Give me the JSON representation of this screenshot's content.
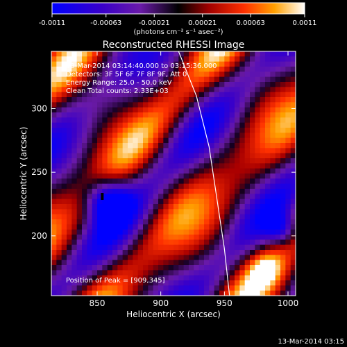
{
  "colorbar": {
    "tick_labels": [
      "-0.0011",
      "-0.00063",
      "-0.00021",
      "0.00021",
      "0.00063",
      "0.0011"
    ],
    "unit_label": "(photons cm⁻² s⁻¹ asec⁻²)",
    "range": [
      -0.0011,
      0.0011
    ]
  },
  "chart_data": {
    "type": "heatmap",
    "title": "Reconstructed RHESSI Image",
    "xlabel": "Heliocentric X (arcsec)",
    "ylabel": "Heliocentric Y (arcsec)",
    "xlim": [
      814,
      1006
    ],
    "ylim": [
      153,
      345
    ],
    "x_ticks": [
      850,
      900,
      950,
      1000
    ],
    "y_ticks": [
      200,
      250,
      300
    ],
    "annotations": [
      "13-Mar-2014 03:14:40.000 to 03:15:36.000",
      "Detectors: 3F 5F 6F 7F 8F 9F, Att 0",
      "Energy Range: 25.0 - 50.0 keV",
      "Clean    Total counts: 2.33E+03"
    ],
    "peak_label": "Position of Peak = [909,345]",
    "peak_position": [
      909,
      345
    ],
    "minimum_marker": [
      854,
      231
    ],
    "limb_curve": [
      [
        914,
        345
      ],
      [
        928,
        310
      ],
      [
        938,
        270
      ],
      [
        944,
        230
      ],
      [
        950,
        190
      ],
      [
        954,
        153
      ]
    ]
  },
  "footer": {
    "timestamp": "13-Mar-2014 03:15"
  }
}
